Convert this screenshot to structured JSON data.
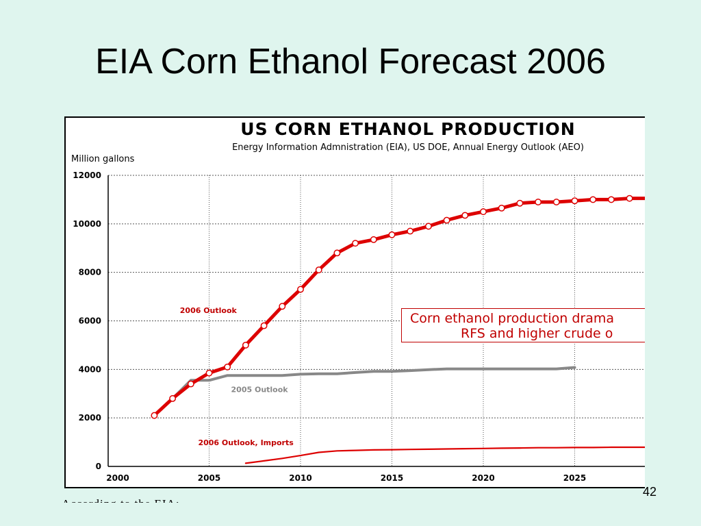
{
  "slide": {
    "title": "EIA Corn Ethanol Forecast 2006",
    "page_number": "42",
    "footer_text": "According to the EIA:"
  },
  "chart_data": {
    "type": "line",
    "title": "US CORN ETHANOL PRODUCTION",
    "subtitle": "Energy Information Admnistration (EIA), US DOE, Annual Energy Outlook (AEO)",
    "ylabel": "Million gallons",
    "xlabel": "",
    "xlim": [
      2000,
      2029
    ],
    "ylim": [
      0,
      12000
    ],
    "x_ticks": [
      2000,
      2005,
      2010,
      2015,
      2020,
      2025
    ],
    "y_ticks": [
      0,
      2000,
      4000,
      6000,
      8000,
      10000,
      12000
    ],
    "grid": true,
    "annotation": {
      "line1": "Corn ethanol production drama",
      "line2": "RFS and higher crude o"
    },
    "series": [
      {
        "name": "2006 Outlook",
        "color": "#dd0000",
        "markers": true,
        "x": [
          2002,
          2003,
          2004,
          2005,
          2006,
          2007,
          2008,
          2009,
          2010,
          2011,
          2012,
          2013,
          2014,
          2015,
          2016,
          2017,
          2018,
          2019,
          2020,
          2021,
          2022,
          2023,
          2024,
          2025,
          2026,
          2027,
          2028,
          2029
        ],
        "y": [
          2100,
          2800,
          3400,
          3850,
          4100,
          5000,
          5800,
          6600,
          7300,
          8100,
          8800,
          9200,
          9350,
          9550,
          9700,
          9900,
          10150,
          10350,
          10500,
          10650,
          10850,
          10900,
          10900,
          10950,
          11000,
          11000,
          11050,
          11050
        ]
      },
      {
        "name": "2005 Outlook",
        "color": "#888888",
        "markers": false,
        "x": [
          2002,
          2003,
          2004,
          2005,
          2006,
          2007,
          2008,
          2009,
          2010,
          2011,
          2012,
          2013,
          2014,
          2015,
          2016,
          2017,
          2018,
          2019,
          2020,
          2021,
          2022,
          2023,
          2024,
          2025
        ],
        "y": [
          2100,
          2800,
          3550,
          3550,
          3750,
          3750,
          3750,
          3750,
          3800,
          3820,
          3820,
          3870,
          3920,
          3920,
          3950,
          3990,
          4020,
          4020,
          4020,
          4020,
          4020,
          4020,
          4020,
          4080
        ]
      },
      {
        "name": "2006 Outlook, Imports",
        "color": "#dd0000",
        "markers": false,
        "x": [
          2007,
          2008,
          2009,
          2010,
          2011,
          2012,
          2013,
          2014,
          2015,
          2016,
          2017,
          2018,
          2019,
          2020,
          2021,
          2022,
          2023,
          2024,
          2025,
          2026,
          2027,
          2028,
          2029
        ],
        "y": [
          130,
          230,
          330,
          450,
          580,
          640,
          660,
          680,
          690,
          700,
          710,
          720,
          730,
          740,
          750,
          760,
          770,
          770,
          780,
          780,
          790,
          790,
          790
        ]
      }
    ],
    "series_labels": [
      {
        "text": "2006 Outlook",
        "color": "#c00000",
        "x": 2003.4,
        "y": 6330
      },
      {
        "text": "2005 Outlook",
        "color": "#888888",
        "x": 2006.2,
        "y": 3070
      },
      {
        "text": "2006 Outlook, Imports",
        "color": "#c00000",
        "x": 2004.4,
        "y": 880
      }
    ]
  }
}
